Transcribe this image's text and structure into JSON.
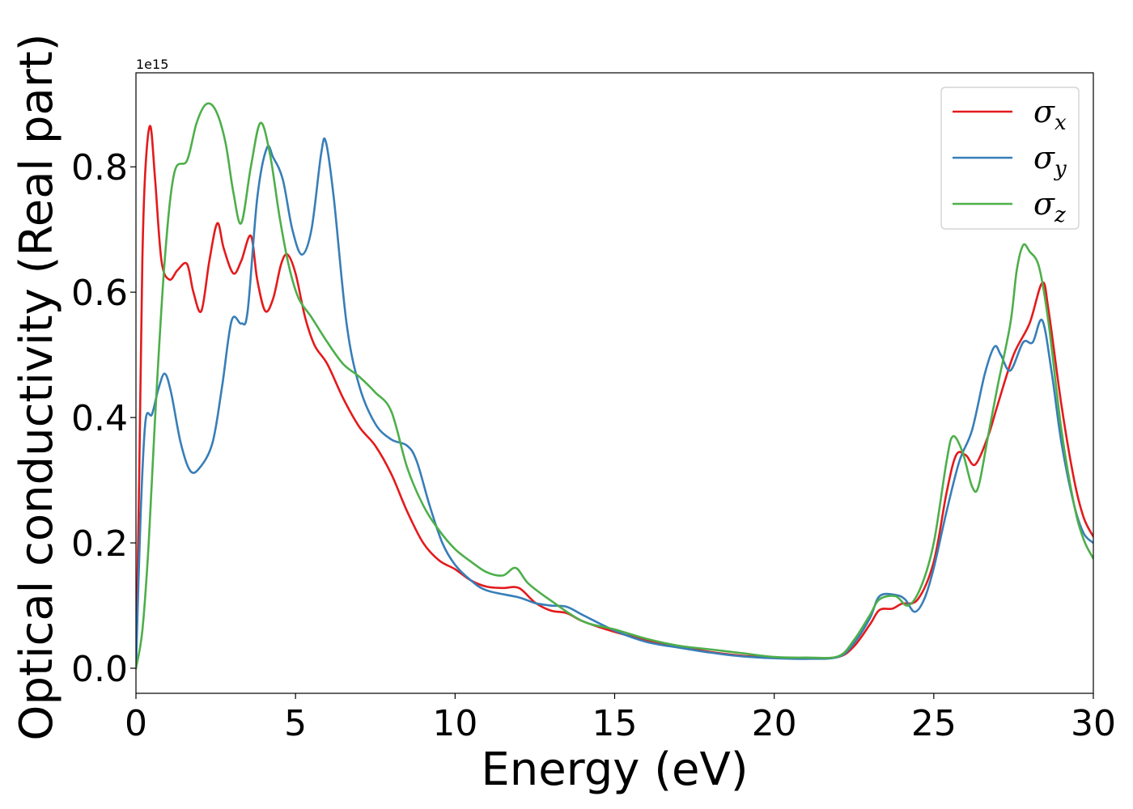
{
  "chart_data": {
    "type": "line",
    "title": "",
    "xlabel": "Energy (eV)",
    "ylabel": "Optical conductivity (Real part)",
    "y_offset_text": "1e15",
    "xlim": [
      0,
      30
    ],
    "ylim": [
      -0.04,
      0.95
    ],
    "xticks": [
      0,
      5,
      10,
      15,
      20,
      25,
      30
    ],
    "xtick_labels": [
      "0",
      "5",
      "10",
      "15",
      "20",
      "25",
      "30"
    ],
    "yticks": [
      0.0,
      0.2,
      0.4,
      0.6,
      0.8
    ],
    "ytick_labels": [
      "0.0",
      "0.2",
      "0.4",
      "0.6",
      "0.8"
    ],
    "grid": false,
    "legend_position": "top-right",
    "series": [
      {
        "name": "σx",
        "symbol": "σ",
        "subscript": "x",
        "color": "#e41a1c",
        "points": [
          [
            0,
            0
          ],
          [
            0.1,
            0.3
          ],
          [
            0.2,
            0.65
          ],
          [
            0.3,
            0.8
          ],
          [
            0.45,
            0.865
          ],
          [
            0.6,
            0.78
          ],
          [
            0.8,
            0.65
          ],
          [
            1.05,
            0.62
          ],
          [
            1.3,
            0.635
          ],
          [
            1.6,
            0.645
          ],
          [
            1.8,
            0.6
          ],
          [
            2.05,
            0.57
          ],
          [
            2.3,
            0.65
          ],
          [
            2.55,
            0.71
          ],
          [
            2.75,
            0.67
          ],
          [
            3.05,
            0.63
          ],
          [
            3.3,
            0.65
          ],
          [
            3.6,
            0.69
          ],
          [
            3.8,
            0.62
          ],
          [
            4.05,
            0.57
          ],
          [
            4.3,
            0.59
          ],
          [
            4.55,
            0.645
          ],
          [
            4.75,
            0.66
          ],
          [
            5.0,
            0.63
          ],
          [
            5.3,
            0.56
          ],
          [
            5.6,
            0.515
          ],
          [
            6.0,
            0.485
          ],
          [
            6.5,
            0.43
          ],
          [
            7.0,
            0.385
          ],
          [
            7.5,
            0.355
          ],
          [
            8.0,
            0.31
          ],
          [
            8.5,
            0.25
          ],
          [
            9.0,
            0.2
          ],
          [
            9.5,
            0.172
          ],
          [
            10.0,
            0.158
          ],
          [
            10.5,
            0.14
          ],
          [
            11.0,
            0.13
          ],
          [
            11.5,
            0.128
          ],
          [
            12.0,
            0.128
          ],
          [
            12.5,
            0.105
          ],
          [
            13.0,
            0.092
          ],
          [
            13.5,
            0.088
          ],
          [
            14.0,
            0.075
          ],
          [
            15.0,
            0.058
          ],
          [
            16.0,
            0.045
          ],
          [
            17.0,
            0.035
          ],
          [
            18.0,
            0.026
          ],
          [
            19.0,
            0.02
          ],
          [
            20.0,
            0.017
          ],
          [
            21.0,
            0.016
          ],
          [
            22.0,
            0.018
          ],
          [
            22.5,
            0.035
          ],
          [
            23.0,
            0.07
          ],
          [
            23.3,
            0.093
          ],
          [
            23.7,
            0.095
          ],
          [
            24.0,
            0.103
          ],
          [
            24.5,
            0.11
          ],
          [
            25.0,
            0.17
          ],
          [
            25.4,
            0.28
          ],
          [
            25.7,
            0.34
          ],
          [
            26.0,
            0.34
          ],
          [
            26.3,
            0.325
          ],
          [
            26.7,
            0.37
          ],
          [
            27.0,
            0.42
          ],
          [
            27.5,
            0.5
          ],
          [
            28.0,
            0.55
          ],
          [
            28.4,
            0.615
          ],
          [
            28.6,
            0.57
          ],
          [
            29.0,
            0.42
          ],
          [
            29.4,
            0.3
          ],
          [
            29.7,
            0.24
          ],
          [
            30.0,
            0.21
          ]
        ]
      },
      {
        "name": "σy",
        "symbol": "σ",
        "subscript": "y",
        "color": "#377eb8",
        "points": [
          [
            0,
            0
          ],
          [
            0.15,
            0.25
          ],
          [
            0.3,
            0.395
          ],
          [
            0.5,
            0.405
          ],
          [
            0.7,
            0.445
          ],
          [
            0.9,
            0.47
          ],
          [
            1.1,
            0.44
          ],
          [
            1.4,
            0.36
          ],
          [
            1.7,
            0.315
          ],
          [
            2.0,
            0.32
          ],
          [
            2.4,
            0.36
          ],
          [
            2.7,
            0.45
          ],
          [
            3.0,
            0.555
          ],
          [
            3.3,
            0.55
          ],
          [
            3.5,
            0.57
          ],
          [
            3.8,
            0.75
          ],
          [
            4.1,
            0.83
          ],
          [
            4.3,
            0.815
          ],
          [
            4.6,
            0.78
          ],
          [
            4.9,
            0.7
          ],
          [
            5.2,
            0.66
          ],
          [
            5.5,
            0.7
          ],
          [
            5.8,
            0.82
          ],
          [
            5.95,
            0.84
          ],
          [
            6.2,
            0.75
          ],
          [
            6.6,
            0.55
          ],
          [
            7.0,
            0.45
          ],
          [
            7.5,
            0.39
          ],
          [
            8.0,
            0.365
          ],
          [
            8.5,
            0.355
          ],
          [
            8.8,
            0.33
          ],
          [
            9.2,
            0.26
          ],
          [
            9.6,
            0.2
          ],
          [
            10.0,
            0.165
          ],
          [
            10.5,
            0.14
          ],
          [
            11.0,
            0.124
          ],
          [
            12.0,
            0.113
          ],
          [
            12.5,
            0.104
          ],
          [
            13.0,
            0.1
          ],
          [
            13.5,
            0.098
          ],
          [
            14.0,
            0.085
          ],
          [
            15.0,
            0.06
          ],
          [
            16.0,
            0.042
          ],
          [
            17.0,
            0.033
          ],
          [
            18.0,
            0.025
          ],
          [
            19.0,
            0.019
          ],
          [
            20.0,
            0.016
          ],
          [
            21.0,
            0.015
          ],
          [
            22.0,
            0.018
          ],
          [
            22.5,
            0.04
          ],
          [
            23.0,
            0.08
          ],
          [
            23.3,
            0.115
          ],
          [
            23.8,
            0.117
          ],
          [
            24.1,
            0.11
          ],
          [
            24.4,
            0.09
          ],
          [
            24.7,
            0.11
          ],
          [
            25.0,
            0.16
          ],
          [
            25.4,
            0.25
          ],
          [
            25.8,
            0.33
          ],
          [
            26.2,
            0.38
          ],
          [
            26.6,
            0.47
          ],
          [
            26.9,
            0.513
          ],
          [
            27.1,
            0.5
          ],
          [
            27.4,
            0.475
          ],
          [
            27.8,
            0.52
          ],
          [
            28.1,
            0.52
          ],
          [
            28.4,
            0.555
          ],
          [
            28.7,
            0.47
          ],
          [
            29.0,
            0.36
          ],
          [
            29.4,
            0.26
          ],
          [
            29.7,
            0.215
          ],
          [
            30.0,
            0.2
          ]
        ]
      },
      {
        "name": "σz",
        "symbol": "σ",
        "subscript": "z",
        "color": "#4daf4a",
        "points": [
          [
            0,
            0
          ],
          [
            0.2,
            0.06
          ],
          [
            0.4,
            0.2
          ],
          [
            0.6,
            0.4
          ],
          [
            0.9,
            0.65
          ],
          [
            1.2,
            0.79
          ],
          [
            1.6,
            0.81
          ],
          [
            1.9,
            0.87
          ],
          [
            2.2,
            0.9
          ],
          [
            2.5,
            0.89
          ],
          [
            2.8,
            0.84
          ],
          [
            3.05,
            0.76
          ],
          [
            3.3,
            0.71
          ],
          [
            3.6,
            0.8
          ],
          [
            3.9,
            0.87
          ],
          [
            4.2,
            0.82
          ],
          [
            4.5,
            0.72
          ],
          [
            4.8,
            0.64
          ],
          [
            5.1,
            0.59
          ],
          [
            5.5,
            0.56
          ],
          [
            6.0,
            0.52
          ],
          [
            6.5,
            0.485
          ],
          [
            7.0,
            0.465
          ],
          [
            7.5,
            0.44
          ],
          [
            8.0,
            0.41
          ],
          [
            8.5,
            0.32
          ],
          [
            9.0,
            0.26
          ],
          [
            9.5,
            0.22
          ],
          [
            10.0,
            0.19
          ],
          [
            10.5,
            0.17
          ],
          [
            11.0,
            0.153
          ],
          [
            11.5,
            0.148
          ],
          [
            11.9,
            0.16
          ],
          [
            12.3,
            0.135
          ],
          [
            13.0,
            0.108
          ],
          [
            14.0,
            0.075
          ],
          [
            15.0,
            0.062
          ],
          [
            16.0,
            0.047
          ],
          [
            17.0,
            0.036
          ],
          [
            18.0,
            0.03
          ],
          [
            19.0,
            0.024
          ],
          [
            20.0,
            0.018
          ],
          [
            21.0,
            0.017
          ],
          [
            22.0,
            0.019
          ],
          [
            22.5,
            0.045
          ],
          [
            23.0,
            0.085
          ],
          [
            23.3,
            0.11
          ],
          [
            23.8,
            0.115
          ],
          [
            24.2,
            0.1
          ],
          [
            24.6,
            0.13
          ],
          [
            25.0,
            0.2
          ],
          [
            25.4,
            0.33
          ],
          [
            25.6,
            0.37
          ],
          [
            25.9,
            0.345
          ],
          [
            26.2,
            0.29
          ],
          [
            26.4,
            0.29
          ],
          [
            26.7,
            0.37
          ],
          [
            27.0,
            0.45
          ],
          [
            27.4,
            0.55
          ],
          [
            27.6,
            0.635
          ],
          [
            27.8,
            0.675
          ],
          [
            28.0,
            0.665
          ],
          [
            28.3,
            0.64
          ],
          [
            28.6,
            0.55
          ],
          [
            29.0,
            0.38
          ],
          [
            29.4,
            0.26
          ],
          [
            29.7,
            0.205
          ],
          [
            30.0,
            0.175
          ]
        ]
      }
    ]
  }
}
